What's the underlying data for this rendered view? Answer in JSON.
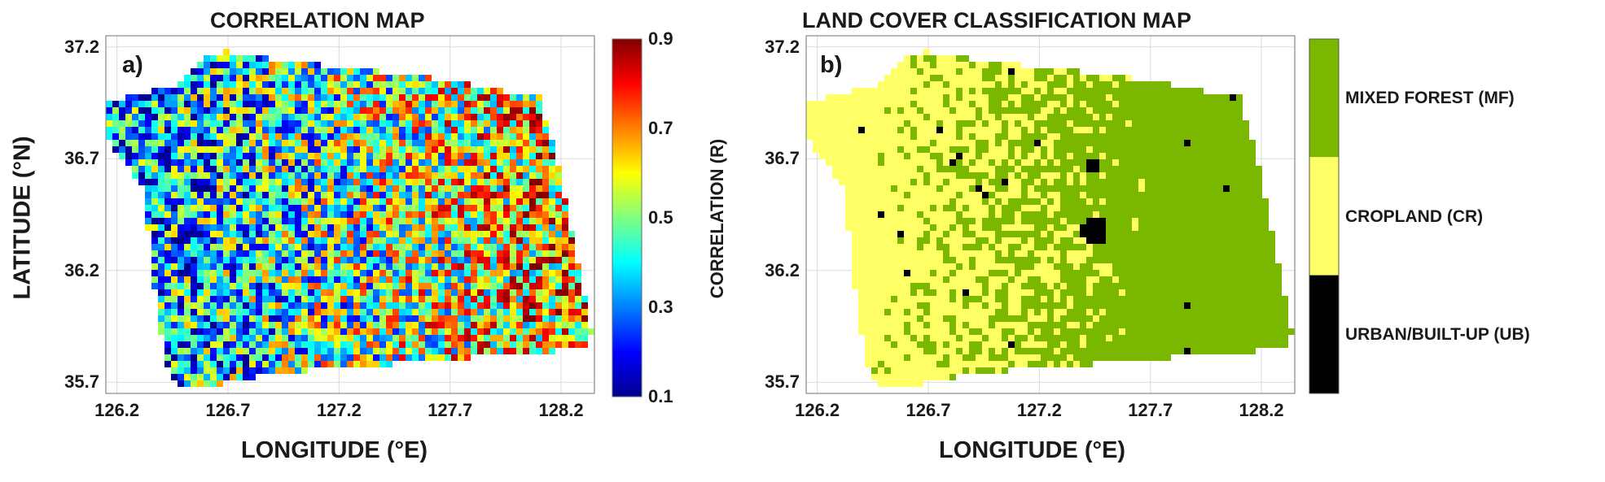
{
  "figure": {
    "panel_a": {
      "title": "CORRELATION MAP",
      "letter": "a)",
      "xlabel": "LONGITUDE (°E)",
      "ylabel": "LATITUDE (°N)",
      "xticks": [
        "126.2",
        "126.7",
        "127.2",
        "127.7",
        "128.2"
      ],
      "yticks": [
        "37.2",
        "36.7",
        "36.2",
        "35.7"
      ],
      "colorbar": {
        "label": "CORRELATION (R)",
        "ticks": [
          "0.9",
          "0.7",
          "0.5",
          "0.3",
          "0.1"
        ],
        "colormap": "jet",
        "range": [
          0.1,
          0.9
        ]
      }
    },
    "panel_b": {
      "title": "LAND COVER CLASSIFICATION MAP",
      "letter": "b)",
      "xlabel": "LONGITUDE (°E)",
      "ylabel": "",
      "xticks": [
        "126.2",
        "126.7",
        "127.2",
        "127.7",
        "128.2"
      ],
      "yticks": [
        "37.2",
        "36.7",
        "36.2",
        "35.7"
      ],
      "legend": [
        {
          "label": "MIXED FOREST (MF)",
          "color": "#7ab800"
        },
        {
          "label": "CROPLAND (CR)",
          "color": "#ffff66"
        },
        {
          "label": "URBAN/BUILT-UP (UB)",
          "color": "#000000"
        }
      ]
    }
  },
  "chart_data": [
    {
      "type": "heatmap",
      "title": "CORRELATION MAP",
      "xlabel": "LONGITUDE (°E)",
      "ylabel": "LATITUDE (°N)",
      "xlim": [
        126.15,
        128.35
      ],
      "ylim": [
        35.65,
        37.25
      ],
      "xticks": [
        126.2,
        126.7,
        127.2,
        127.7,
        128.2
      ],
      "yticks": [
        35.7,
        36.2,
        36.7,
        37.2
      ],
      "colorbar_label": "CORRELATION (R)",
      "value_range": [
        0.1,
        0.9
      ],
      "grid": true
    },
    {
      "type": "heatmap",
      "title": "LAND COVER CLASSIFICATION MAP",
      "xlabel": "LONGITUDE (°E)",
      "xlim": [
        126.15,
        128.35
      ],
      "ylim": [
        35.65,
        37.25
      ],
      "xticks": [
        126.2,
        126.7,
        127.2,
        127.7,
        128.2
      ],
      "yticks": [
        35.7,
        36.2,
        36.7,
        37.2
      ],
      "categories": [
        "MIXED FOREST (MF)",
        "CROPLAND (CR)",
        "URBAN/BUILT-UP (UB)"
      ],
      "grid": true
    }
  ]
}
